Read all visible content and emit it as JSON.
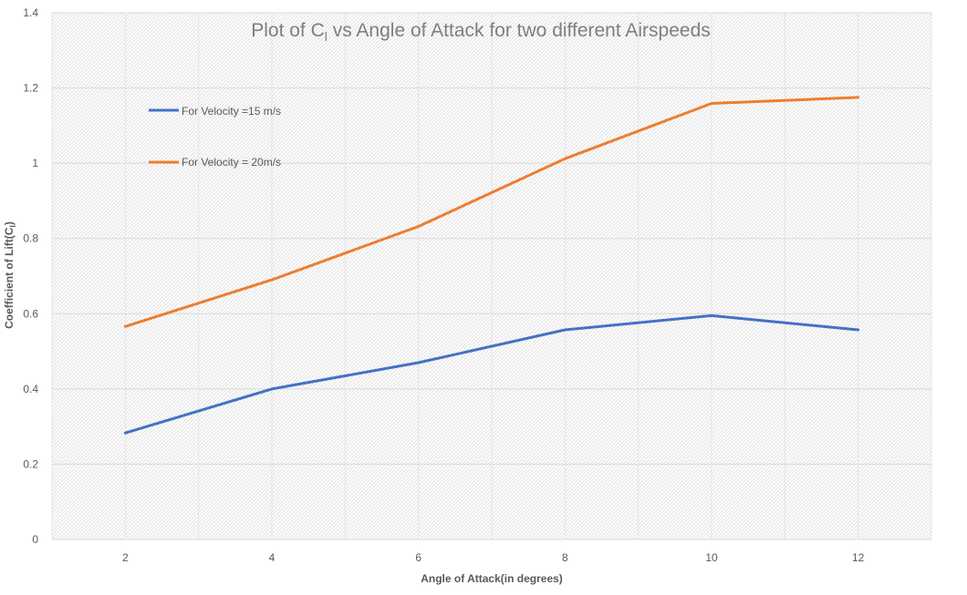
{
  "chart_data": {
    "type": "line",
    "title_main": "Plot of C",
    "title_sub": "l",
    "title_rest": " vs Angle of Attack for two different Airspeeds",
    "xlabel": "Angle of Attack(in degrees)",
    "ylabel_main": "Coefficient of Lift(C",
    "ylabel_sub": "l",
    "ylabel_end": ")",
    "x": [
      2,
      4,
      6,
      8,
      10,
      12
    ],
    "xlim": [
      1,
      13
    ],
    "ylim": [
      0,
      1.4
    ],
    "yticks": [
      0,
      0.2,
      0.4,
      0.6,
      0.8,
      1,
      1.2,
      1.4
    ],
    "ytick_labels": [
      "0",
      "0.2",
      "0.4",
      "0.6",
      "0.8",
      "1",
      "1.2",
      "1.4"
    ],
    "grid": true,
    "legend_position": "top-left",
    "series": [
      {
        "name": "For Velocity =15 m/s",
        "color": "#4472c4",
        "values": [
          0.283,
          0.4,
          0.47,
          0.557,
          0.595,
          0.557
        ]
      },
      {
        "name": "For Velocity = 20m/s",
        "color": "#ed7d31",
        "values": [
          0.566,
          0.69,
          0.832,
          1.012,
          1.159,
          1.175
        ]
      }
    ]
  }
}
